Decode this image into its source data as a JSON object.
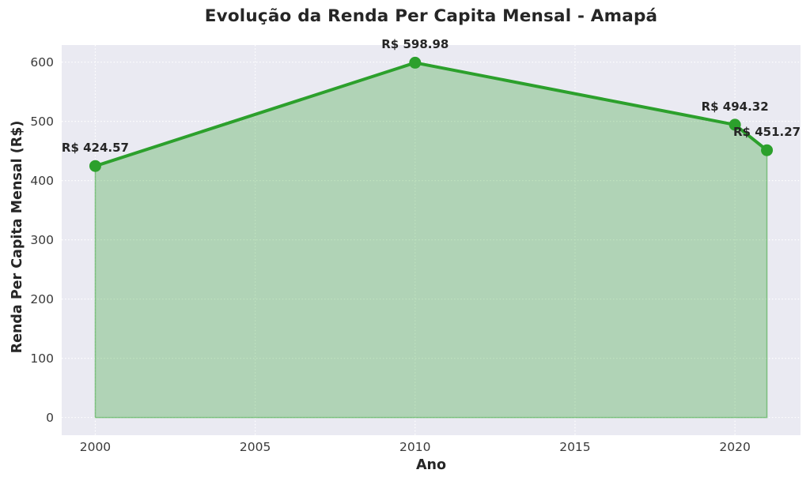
{
  "figure": {
    "title": "Evolução da Renda Per Capita Mensal - Amapá"
  },
  "chart_data": {
    "type": "area",
    "title": "Evolução da Renda Per Capita Mensal - Amapá",
    "xlabel": "Ano",
    "ylabel": "Renda Per Capita Mensal (R$)",
    "x": [
      2000,
      2010,
      2020,
      2021
    ],
    "values": [
      424.57,
      598.98,
      494.32,
      451.27
    ],
    "point_labels": [
      "R$ 424.57",
      "R$ 598.98",
      "R$ 494.32",
      "R$ 451.27"
    ],
    "xticks": [
      2000,
      2005,
      2010,
      2015,
      2020
    ],
    "yticks": [
      0,
      100,
      200,
      300,
      400,
      500,
      600
    ],
    "xlim": [
      1998.95,
      2022.05
    ],
    "ylim": [
      -29.9,
      628.9
    ],
    "baseline": 0,
    "grid": true,
    "legend": "none",
    "colors": {
      "line": "#2ca02c",
      "fill": "#2ca02c",
      "fill_opacity": 0.3,
      "fill_edge": "#2ca02c",
      "fill_edge_opacity": 0.5,
      "plot_background": "#eaeaf2",
      "figure_background": "#ffffff",
      "grid": "#ffffff",
      "title_text": "#262626",
      "tick_text": "#3a3a3a"
    }
  }
}
